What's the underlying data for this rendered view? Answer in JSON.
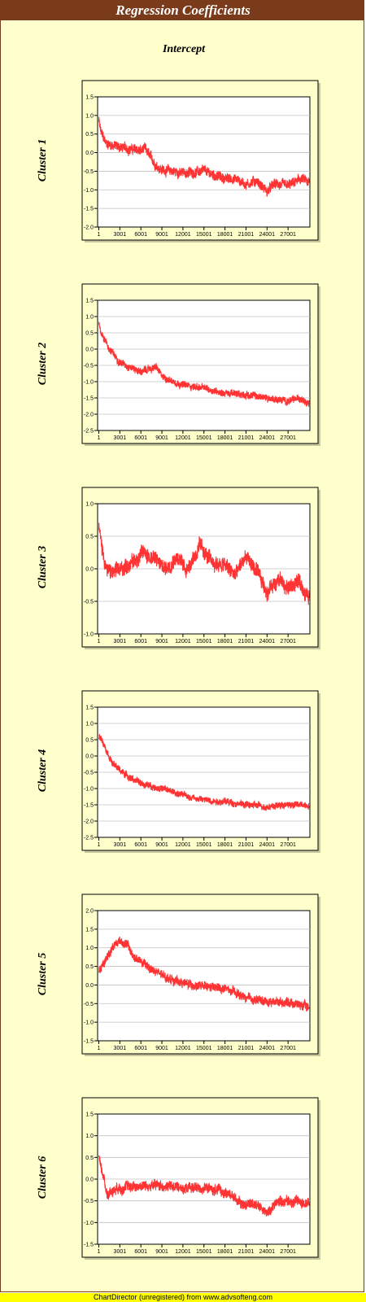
{
  "title": "Regression Coefficients",
  "subtitle": "Intercept",
  "footer": "ChartDirector (unregistered) from www.advsofteng.com",
  "colors": {
    "title_bar": "#7a3b1a",
    "frame_background": "#ffffcc",
    "plot_background": "#ffffff",
    "series_line": "#ff3333",
    "gridline": "#c0c0c0",
    "footer_bar": "#ffff00"
  },
  "chart_data": [
    {
      "type": "line",
      "ylabel": "Cluster 1",
      "x_ticks": [
        "1",
        "3001",
        "6001",
        "9001",
        "12001",
        "15001",
        "18001",
        "21001",
        "24001",
        "27001"
      ],
      "x_range": [
        1,
        30000
      ],
      "ylim": [
        -2.0,
        1.5
      ],
      "y_ticks": [
        "1.5",
        "1.0",
        "0.5",
        "0.0",
        "-0.5",
        "-1.0",
        "-1.5",
        "-2.0"
      ],
      "grid": "horizontal",
      "series_profile": {
        "x": [
          1,
          300,
          1000,
          3000,
          6000,
          6600,
          8000,
          9000,
          12000,
          15000,
          18000,
          19500,
          21000,
          22500,
          24000,
          25000,
          27000,
          29000,
          30000
        ],
        "y": [
          0.85,
          0.55,
          0.25,
          0.15,
          0.05,
          0.1,
          -0.3,
          -0.45,
          -0.55,
          -0.5,
          -0.7,
          -0.7,
          -0.85,
          -0.75,
          -1.05,
          -0.85,
          -0.9,
          -0.7,
          -0.85
        ]
      },
      "noise": 0.22
    },
    {
      "type": "line",
      "ylabel": "Cluster 2",
      "x_ticks": [
        "1",
        "3001",
        "6001",
        "9001",
        "12001",
        "15001",
        "18001",
        "21001",
        "24001",
        "27001"
      ],
      "x_range": [
        1,
        30000
      ],
      "ylim": [
        -2.5,
        1.5
      ],
      "y_ticks": [
        "1.5",
        "1.0",
        "0.5",
        "0.0",
        "-0.5",
        "-1.0",
        "-1.5",
        "-2.0",
        "-2.5"
      ],
      "grid": "horizontal",
      "series_profile": {
        "x": [
          1,
          300,
          1500,
          3000,
          6000,
          8200,
          9000,
          12000,
          15000,
          18000,
          21000,
          24000,
          27000,
          29000,
          30000
        ],
        "y": [
          0.8,
          0.55,
          0.0,
          -0.4,
          -0.7,
          -0.55,
          -0.85,
          -1.1,
          -1.2,
          -1.35,
          -1.4,
          -1.5,
          -1.6,
          -1.5,
          -1.65
        ]
      },
      "noise": 0.18
    },
    {
      "type": "line",
      "ylabel": "Cluster 3",
      "x_ticks": [
        "1",
        "3001",
        "6001",
        "9001",
        "12001",
        "15001",
        "18001",
        "21001",
        "24001",
        "27001"
      ],
      "x_range": [
        1,
        30000
      ],
      "ylim": [
        -1.0,
        1.0
      ],
      "y_ticks": [
        "1.0",
        "0.5",
        "0.0",
        "-0.5",
        "-1.0"
      ],
      "grid": "horizontal",
      "series_profile": {
        "x": [
          1,
          400,
          1200,
          2500,
          4000,
          6500,
          8000,
          9500,
          11000,
          12500,
          14500,
          16000,
          18000,
          19500,
          21000,
          22500,
          24000,
          25500,
          27000,
          28500,
          30000
        ],
        "y": [
          0.65,
          0.35,
          -0.05,
          -0.05,
          0.05,
          0.25,
          0.15,
          0.0,
          0.2,
          0.0,
          0.35,
          0.1,
          0.05,
          -0.1,
          0.2,
          -0.05,
          -0.35,
          -0.15,
          -0.3,
          -0.2,
          -0.45
        ]
      },
      "noise": 0.2
    },
    {
      "type": "line",
      "ylabel": "Cluster 4",
      "x_ticks": [
        "1",
        "3001",
        "6001",
        "9001",
        "12001",
        "15001",
        "18001",
        "21001",
        "24001",
        "27001"
      ],
      "x_range": [
        1,
        30000
      ],
      "ylim": [
        -2.5,
        1.5
      ],
      "y_ticks": [
        "1.5",
        "1.0",
        "0.5",
        "0.0",
        "-0.5",
        "-1.0",
        "-1.5",
        "-2.0",
        "-2.5"
      ],
      "grid": "horizontal",
      "series_profile": {
        "x": [
          1,
          500,
          2000,
          4000,
          6000,
          9000,
          12000,
          15000,
          18000,
          21000,
          24000,
          27000,
          30000
        ],
        "y": [
          0.6,
          0.5,
          -0.25,
          -0.6,
          -0.85,
          -1.0,
          -1.2,
          -1.35,
          -1.4,
          -1.5,
          -1.55,
          -1.5,
          -1.5
        ]
      },
      "noise": 0.17
    },
    {
      "type": "line",
      "ylabel": "Cluster 5",
      "x_ticks": [
        "1",
        "3001",
        "6001",
        "9001",
        "12001",
        "15001",
        "18001",
        "21001",
        "24001",
        "27001"
      ],
      "x_range": [
        1,
        30000
      ],
      "ylim": [
        -1.5,
        2.0
      ],
      "y_ticks": [
        "2.0",
        "1.5",
        "1.0",
        "0.5",
        "0.0",
        "-0.5",
        "-1.0",
        "-1.5"
      ],
      "grid": "horizontal",
      "series_profile": {
        "x": [
          1,
          1000,
          2000,
          3000,
          4000,
          5000,
          6500,
          9000,
          12000,
          15000,
          18000,
          21000,
          24000,
          27000,
          30000
        ],
        "y": [
          0.35,
          0.7,
          1.05,
          1.2,
          1.1,
          0.75,
          0.55,
          0.25,
          0.05,
          -0.05,
          -0.1,
          -0.35,
          -0.45,
          -0.45,
          -0.6
        ]
      },
      "noise": 0.2
    },
    {
      "type": "line",
      "ylabel": "Cluster 6",
      "x_ticks": [
        "1",
        "3001",
        "6001",
        "9001",
        "12001",
        "15001",
        "18001",
        "21001",
        "24001",
        "27001"
      ],
      "x_range": [
        1,
        30000
      ],
      "ylim": [
        -1.5,
        1.5
      ],
      "y_ticks": [
        "1.5",
        "1.0",
        "0.5",
        "0.0",
        "-0.5",
        "-1.0",
        "-1.5"
      ],
      "grid": "horizontal",
      "series_profile": {
        "x": [
          1,
          300,
          1200,
          2500,
          6000,
          9000,
          12000,
          15000,
          18000,
          19500,
          21000,
          22500,
          24000,
          25500,
          27000,
          30000
        ],
        "y": [
          0.5,
          0.3,
          -0.35,
          -0.2,
          -0.15,
          -0.15,
          -0.2,
          -0.2,
          -0.3,
          -0.45,
          -0.6,
          -0.55,
          -0.8,
          -0.5,
          -0.5,
          -0.55
        ]
      },
      "noise": 0.2
    }
  ]
}
